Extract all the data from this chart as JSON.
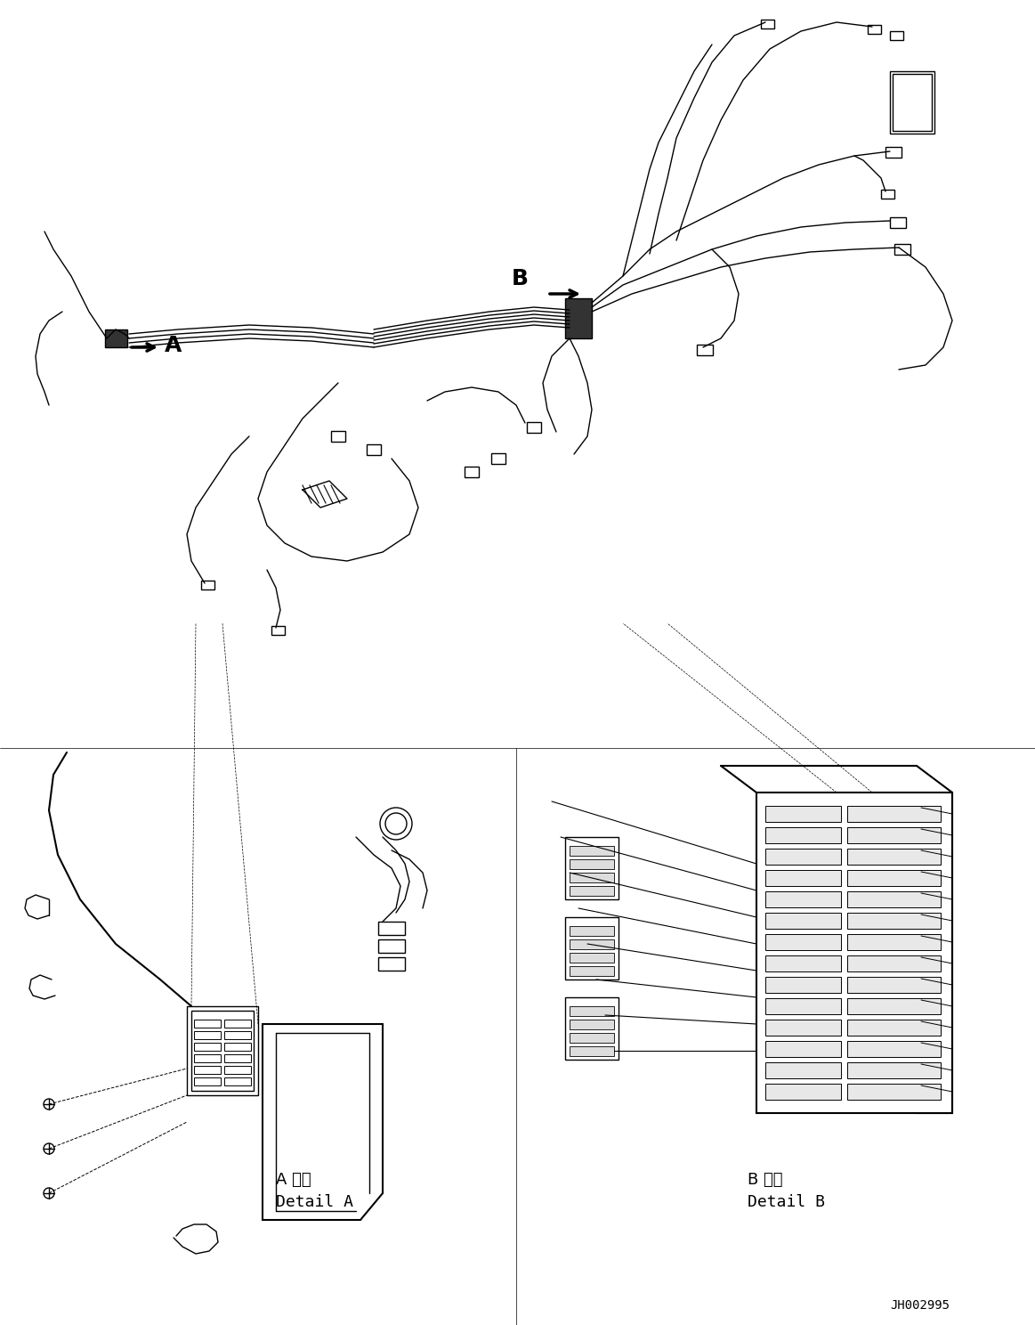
{
  "title": "",
  "background_color": "#ffffff",
  "fig_width": 11.63,
  "fig_height": 14.88,
  "dpi": 100,
  "label_A": "A",
  "label_B": "B",
  "detail_A_text1": "A 詳細",
  "detail_A_text2": "Detail A",
  "detail_B_text1": "B 詳細",
  "detail_B_text2": "Detail B",
  "watermark": "JH002995",
  "line_color": "#000000",
  "line_width": 1.0
}
